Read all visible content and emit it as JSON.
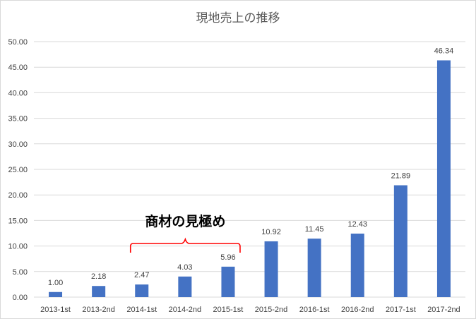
{
  "colors": {
    "bar": "#4472C4",
    "grid": "#d9d9d9",
    "bracket": "#ff0000"
  },
  "chart_data": {
    "type": "bar",
    "title": "現地売上の推移",
    "xlabel": "",
    "ylabel": "",
    "ylim": [
      0,
      50
    ],
    "y_ticks": [
      "0.00",
      "5.00",
      "10.00",
      "15.00",
      "20.00",
      "25.00",
      "30.00",
      "35.00",
      "40.00",
      "45.00",
      "50.00"
    ],
    "grid": true,
    "legend": "none",
    "categories": [
      "2013-1st",
      "2013-2nd",
      "2014-1st",
      "2014-2nd",
      "2015-1st",
      "2015-2nd",
      "2016-1st",
      "2016-2nd",
      "2017-1st",
      "2017-2nd"
    ],
    "values": [
      1.0,
      2.18,
      2.47,
      4.03,
      5.96,
      10.92,
      11.45,
      12.43,
      21.89,
      46.34
    ],
    "data_labels": [
      "1.00",
      "2.18",
      "2.47",
      "4.03",
      "5.96",
      "10.92",
      "11.45",
      "12.43",
      "21.89",
      "46.34"
    ],
    "annotations": [
      {
        "text": "商材の見極め",
        "from_category": "2014-1st",
        "to_category": "2015-1st",
        "style": "curly-brace"
      }
    ]
  }
}
